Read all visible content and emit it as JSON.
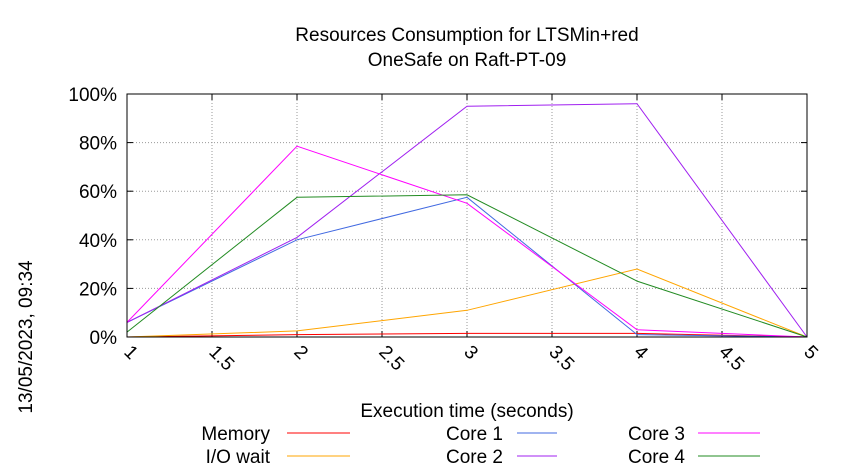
{
  "chart_data": {
    "type": "line",
    "title_lines": [
      "Resources Consumption for LTSMin+red",
      "OneSafe on Raft-PT-09"
    ],
    "xlabel": "Execution time (seconds)",
    "ylabel": "",
    "xlim": [
      1,
      5
    ],
    "ylim": [
      0,
      100
    ],
    "x_ticks": [
      "1",
      "1.5",
      "2",
      "2.5",
      "3",
      "3.5",
      "4",
      "4.5",
      "5"
    ],
    "y_ticks": [
      "0%",
      "20%",
      "40%",
      "60%",
      "80%",
      "100%"
    ],
    "grid": true,
    "legend_position": "bottom",
    "series": [
      {
        "name": "Memory",
        "color": "#ff0000",
        "x": [
          1,
          2,
          3,
          4,
          5
        ],
        "values": [
          0,
          1,
          1.5,
          1.5,
          0
        ]
      },
      {
        "name": "I/O wait",
        "color": "#ffa500",
        "x": [
          1,
          2,
          3,
          4,
          5
        ],
        "values": [
          0,
          2.5,
          11,
          28,
          0
        ]
      },
      {
        "name": "Core 1",
        "color": "#4169e1",
        "x": [
          1,
          2,
          3,
          4,
          5
        ],
        "values": [
          6,
          40,
          57.5,
          1,
          0
        ]
      },
      {
        "name": "Core 2",
        "color": "#a020f0",
        "x": [
          1,
          2,
          3,
          4,
          5
        ],
        "values": [
          6,
          41,
          95,
          96,
          0
        ]
      },
      {
        "name": "Core 3",
        "color": "#ff00ff",
        "x": [
          1,
          2,
          3,
          4,
          5
        ],
        "values": [
          6,
          78.5,
          55,
          3,
          0
        ]
      },
      {
        "name": "Core 4",
        "color": "#228b22",
        "x": [
          1,
          2,
          3,
          4,
          5
        ],
        "values": [
          2,
          57.5,
          58.5,
          23,
          0
        ]
      }
    ]
  },
  "timestamp": "13/05/2023, 09:34"
}
